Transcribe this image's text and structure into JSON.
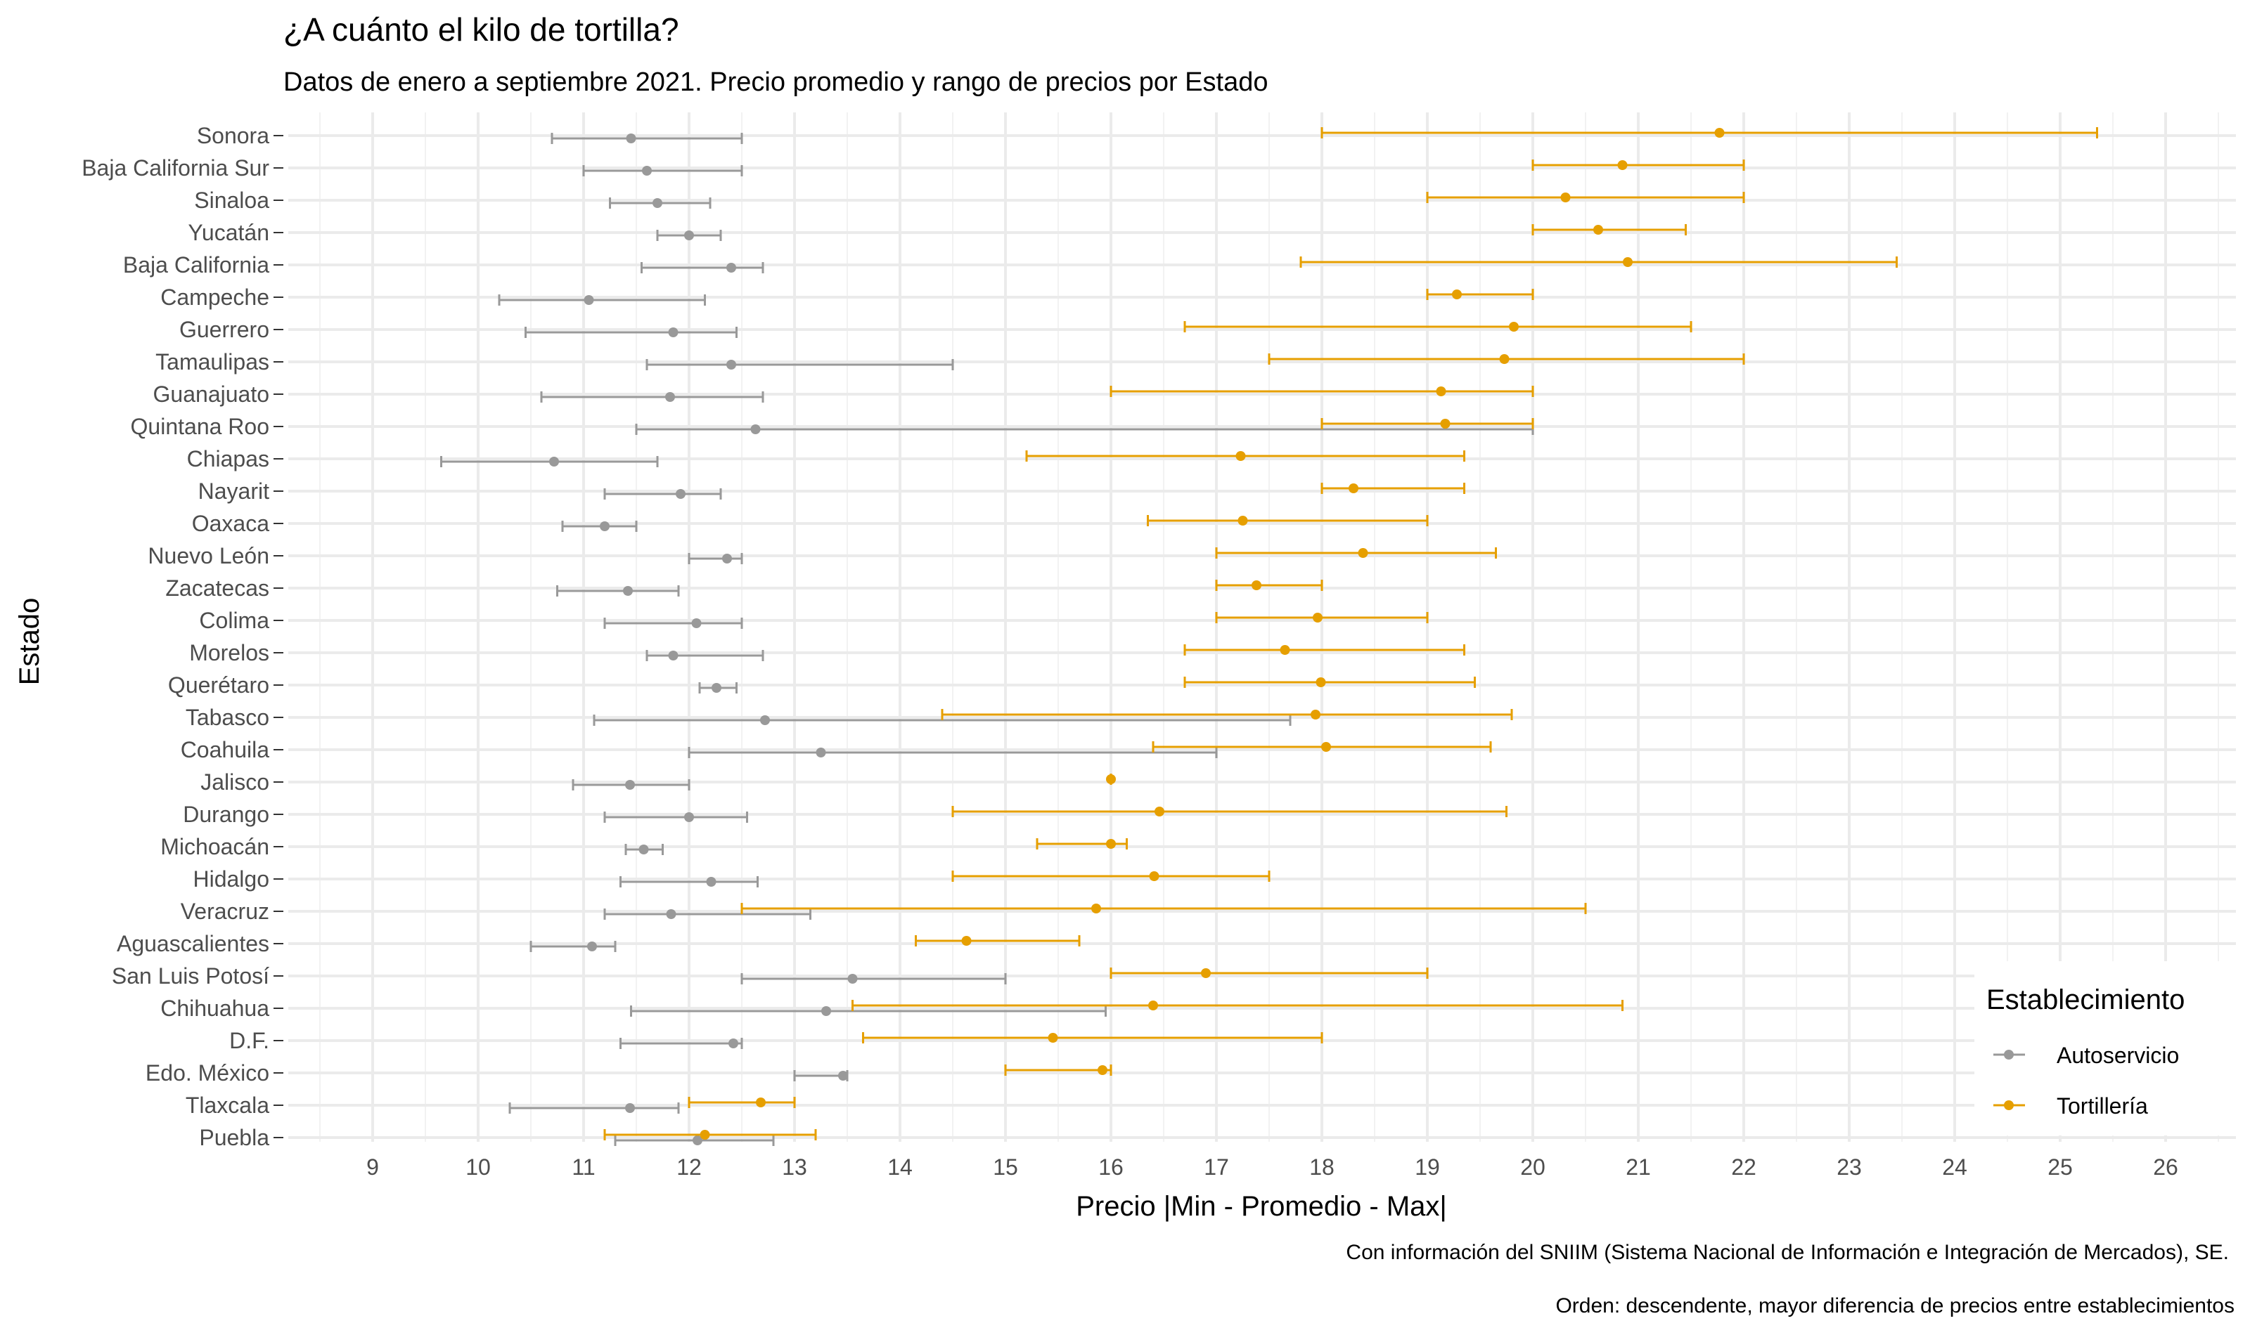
{
  "chart_data": {
    "type": "errorbar",
    "title": "¿A cuánto el kilo de tortilla?",
    "subtitle": "Datos de enero a septiembre 2021. Precio promedio y rango de precios por Estado",
    "xlabel": "Precio |Min - Promedio - Max|",
    "ylabel": "Estado",
    "caption_lines": [
      "Con información del SNIIM (Sistema Nacional de Información e Integración de Mercados), SE.",
      "Orden: descendente, mayor diferencia de precios entre establecimientos"
    ],
    "xlim": [
      8.4,
      26.5
    ],
    "x_ticks": [
      9,
      10,
      11,
      12,
      13,
      14,
      15,
      16,
      17,
      18,
      19,
      20,
      21,
      22,
      23,
      24,
      25,
      26
    ],
    "grid": true,
    "legend": {
      "title": "Establecimiento",
      "position": "right-bottom",
      "entries": [
        {
          "name": "Autoservicio",
          "color": "#999999"
        },
        {
          "name": "Tortillería",
          "color": "#E69F00"
        }
      ]
    },
    "categories": [
      "Sonora",
      "Baja California Sur",
      "Sinaloa",
      "Yucatán",
      "Baja California",
      "Campeche",
      "Guerrero",
      "Tamaulipas",
      "Guanajuato",
      "Quintana Roo",
      "Chiapas",
      "Nayarit",
      "Oaxaca",
      "Nuevo León",
      "Zacatecas",
      "Colima",
      "Morelos",
      "Querétaro",
      "Tabasco",
      "Coahuila",
      "Jalisco",
      "Durango",
      "Michoacán",
      "Hidalgo",
      "Veracruz",
      "Aguascalientes ",
      "San Luis Potosí",
      "Chihuahua",
      "D.F.",
      "Edo. México",
      "Tlaxcala",
      "Puebla"
    ],
    "series": [
      {
        "name": "Autoservicio",
        "color": "#999999",
        "min": [
          10.7,
          11.0,
          11.25,
          11.7,
          11.55,
          10.2,
          10.45,
          11.6,
          10.6,
          11.5,
          9.65,
          11.2,
          10.8,
          12.0,
          10.75,
          11.2,
          11.6,
          12.1,
          11.1,
          12.0,
          10.9,
          11.2,
          11.4,
          11.35,
          11.2,
          10.5,
          12.5,
          11.45,
          11.35,
          13.0,
          10.3,
          11.3
        ],
        "mean": [
          11.45,
          11.6,
          11.7,
          12.0,
          12.4,
          11.05,
          11.85,
          12.4,
          11.82,
          12.63,
          10.72,
          11.92,
          11.2,
          12.36,
          11.42,
          12.07,
          11.85,
          12.26,
          12.72,
          13.25,
          11.44,
          12.0,
          11.57,
          12.21,
          11.83,
          11.08,
          13.55,
          13.3,
          12.42,
          13.46,
          11.44,
          12.08
        ],
        "max": [
          12.5,
          12.5,
          12.2,
          12.3,
          12.7,
          12.15,
          12.45,
          14.5,
          12.7,
          20.0,
          11.7,
          12.3,
          11.5,
          12.5,
          11.9,
          12.5,
          12.7,
          12.45,
          17.7,
          17.0,
          12.0,
          12.55,
          11.75,
          12.65,
          13.15,
          11.3,
          15.0,
          15.95,
          12.5,
          13.5,
          11.9,
          12.8
        ]
      },
      {
        "name": "Tortillería",
        "color": "#E69F00",
        "min": [
          18.0,
          20.0,
          19.0,
          20.0,
          17.8,
          19.0,
          16.7,
          17.5,
          16.0,
          18.0,
          15.2,
          18.0,
          16.35,
          17.0,
          17.0,
          17.0,
          16.7,
          16.7,
          14.4,
          16.4,
          16.0,
          14.5,
          15.3,
          14.5,
          12.5,
          14.15,
          16.0,
          13.55,
          13.65,
          15.0,
          12.0,
          11.2
        ],
        "mean": [
          21.77,
          20.85,
          20.31,
          20.62,
          20.9,
          19.28,
          19.82,
          19.73,
          19.13,
          19.17,
          17.23,
          18.3,
          17.25,
          18.39,
          17.38,
          17.96,
          17.65,
          17.99,
          17.94,
          18.04,
          16.0,
          16.46,
          16.0,
          16.41,
          15.86,
          14.63,
          16.9,
          16.4,
          15.45,
          15.92,
          12.68,
          12.15
        ],
        "max": [
          25.35,
          22.0,
          22.0,
          21.45,
          23.45,
          20.0,
          21.5,
          22.0,
          20.0,
          20.0,
          19.35,
          19.35,
          19.0,
          19.65,
          18.0,
          19.0,
          19.35,
          19.45,
          19.8,
          19.6,
          16.0,
          19.75,
          16.15,
          17.5,
          20.5,
          15.7,
          19.0,
          20.85,
          18.0,
          16.0,
          13.0,
          13.2
        ]
      }
    ]
  }
}
